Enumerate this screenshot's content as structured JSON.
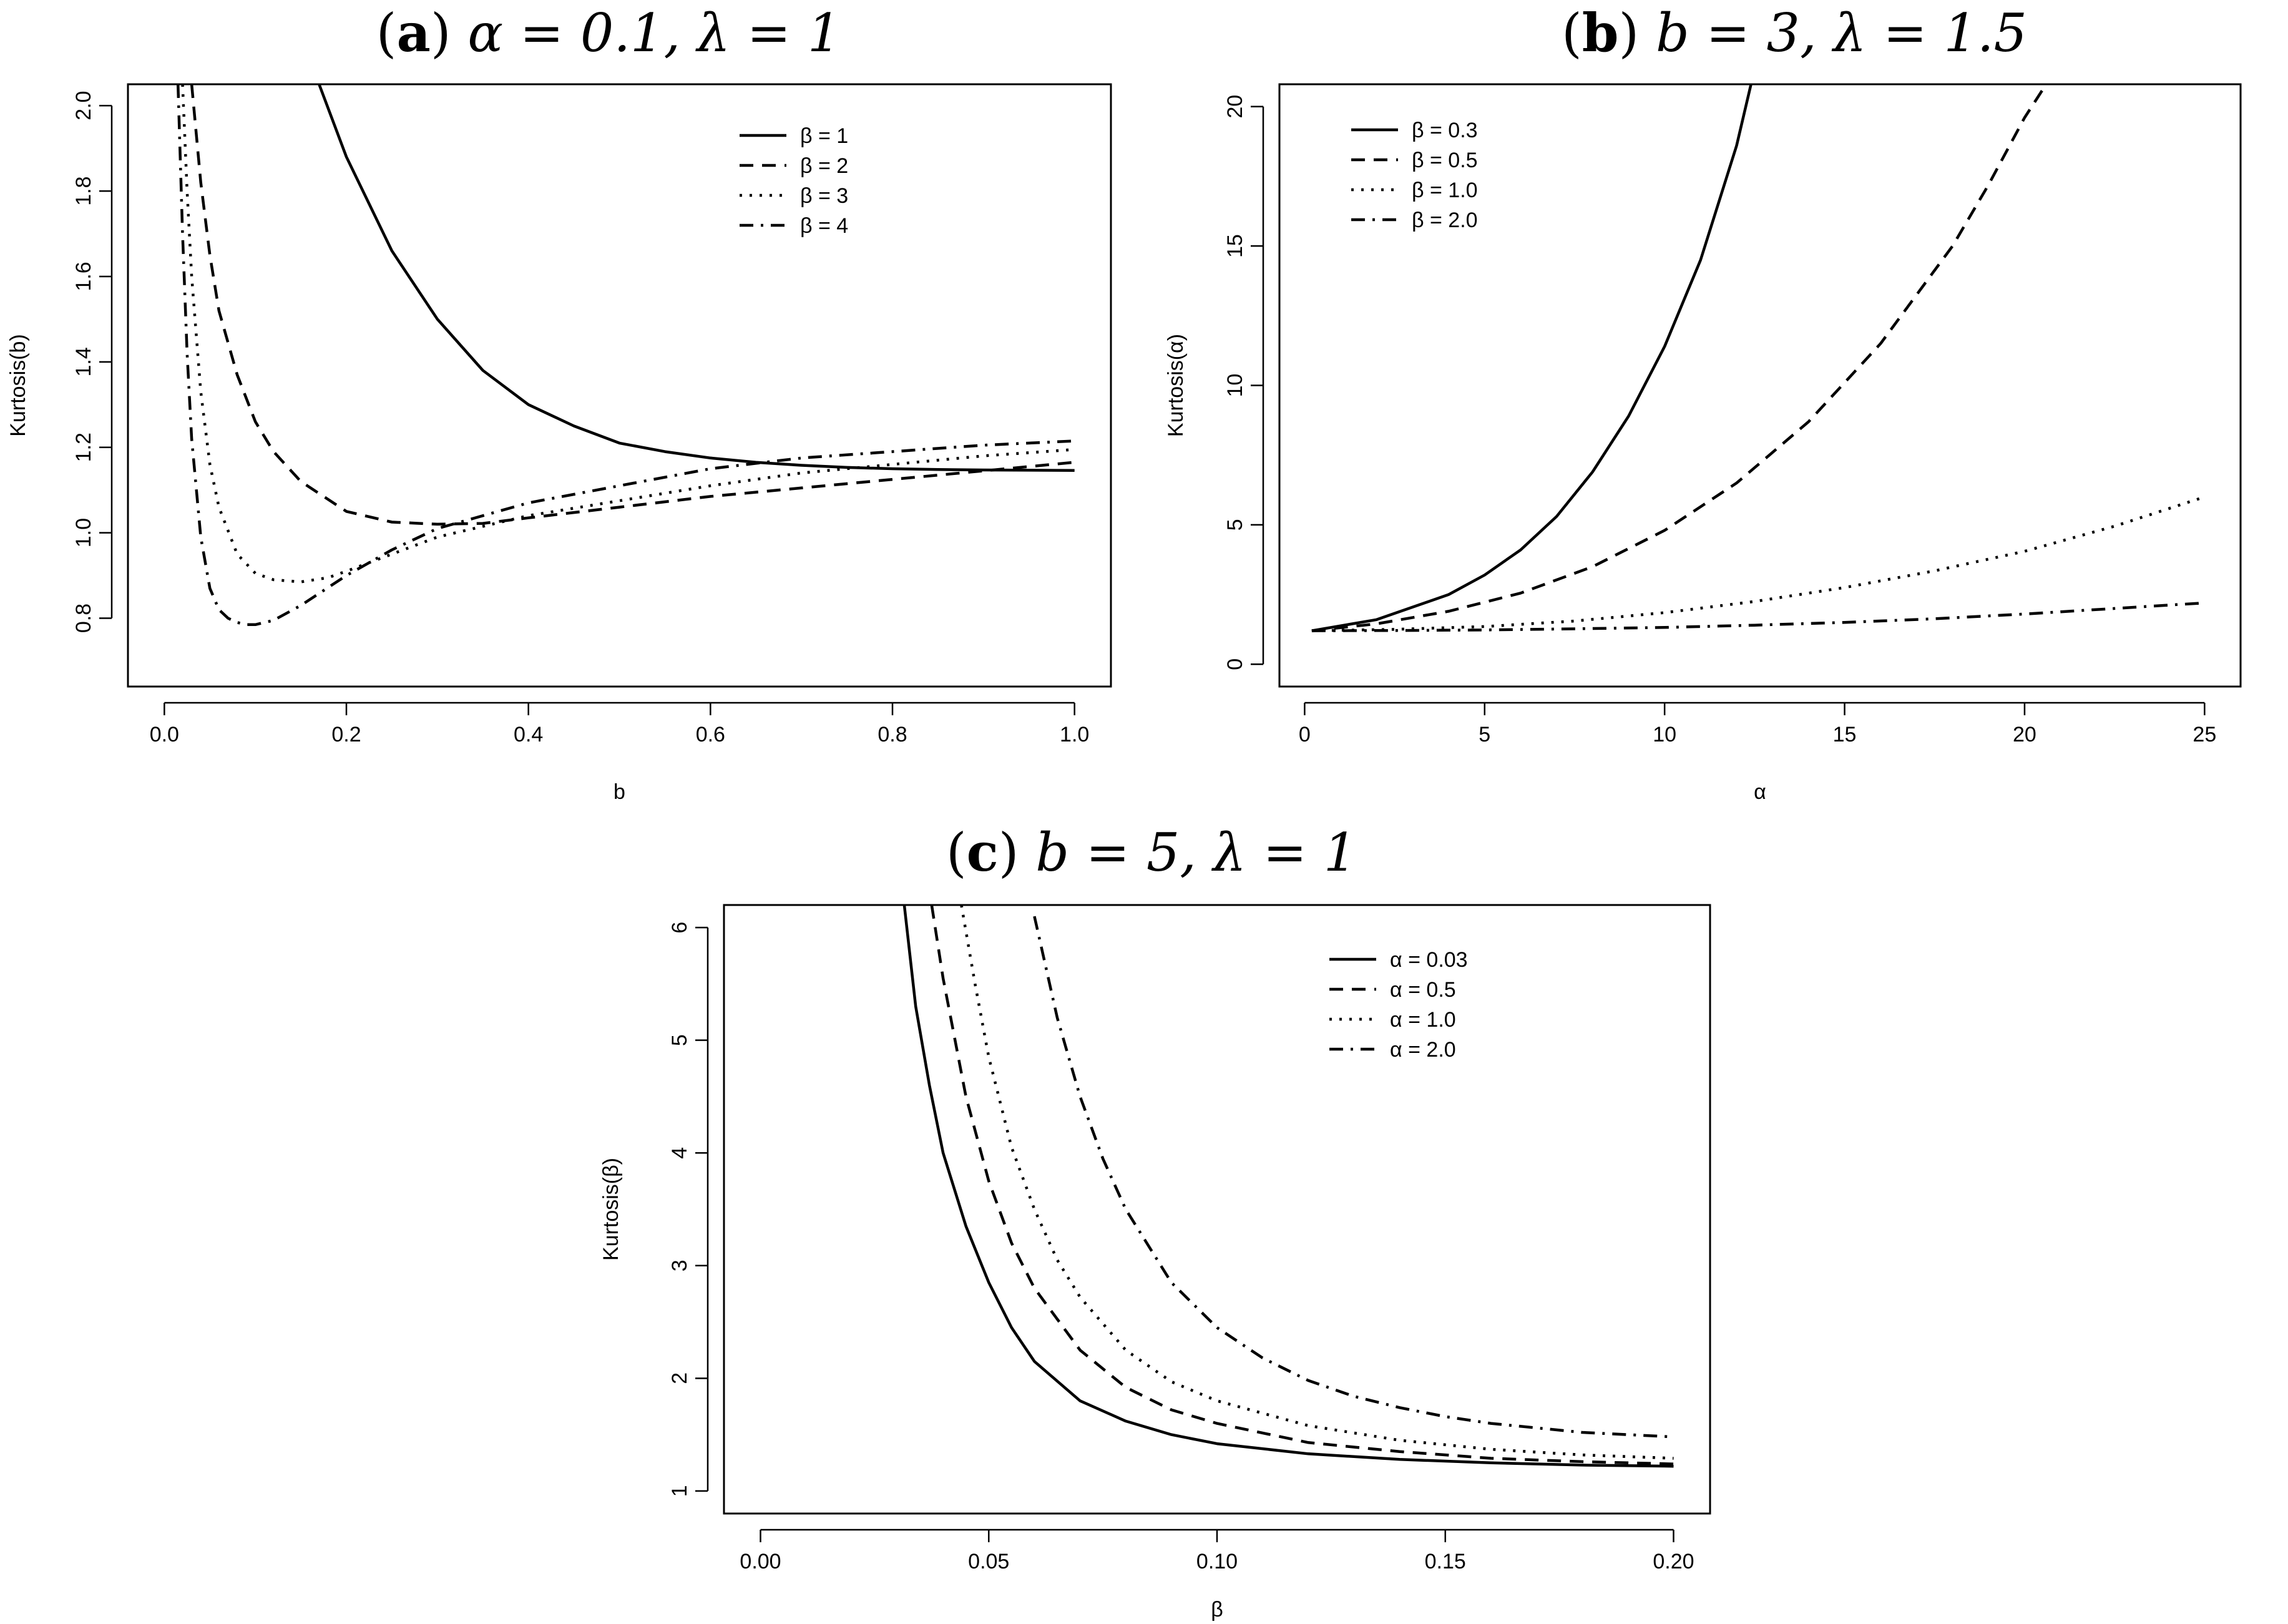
{
  "figure": {
    "line_color": "#000000",
    "background": "#ffffff"
  },
  "chart_data": [
    {
      "id": "a",
      "type": "line",
      "title_letter": "a",
      "title_math": "α = 0.1, λ = 1",
      "xlabel": "b",
      "ylabel": "Kurtosis(b)",
      "xlim": [
        -0.04,
        1.04
      ],
      "ylim": [
        0.64,
        2.05
      ],
      "xticks": [
        0.0,
        0.2,
        0.4,
        0.6,
        0.8,
        1.0
      ],
      "xtick_labels": [
        "0.0",
        "0.2",
        "0.4",
        "0.6",
        "0.8",
        "1.0"
      ],
      "yticks": [
        0.8,
        1.0,
        1.2,
        1.4,
        1.6,
        1.8,
        2.0
      ],
      "ytick_labels": [
        "0.8",
        "1.0",
        "1.2",
        "1.4",
        "1.6",
        "1.8",
        "2.0"
      ],
      "legend_position": "top-right",
      "series": [
        {
          "name": "β = 1",
          "dash": "solid",
          "x": [
            0.17,
            0.2,
            0.25,
            0.3,
            0.35,
            0.4,
            0.45,
            0.5,
            0.55,
            0.6,
            0.65,
            0.7,
            0.75,
            0.8,
            0.85,
            0.9,
            1.0
          ],
          "y": [
            2.05,
            1.88,
            1.66,
            1.5,
            1.38,
            1.3,
            1.25,
            1.21,
            1.19,
            1.175,
            1.165,
            1.158,
            1.153,
            1.15,
            1.148,
            1.147,
            1.146
          ]
        },
        {
          "name": "β = 2",
          "dash": "dashed",
          "x": [
            0.03,
            0.04,
            0.05,
            0.06,
            0.08,
            0.1,
            0.12,
            0.15,
            0.2,
            0.25,
            0.3,
            0.35,
            0.4,
            0.5,
            0.6,
            0.7,
            0.8,
            0.9,
            1.0
          ],
          "y": [
            2.05,
            1.82,
            1.65,
            1.52,
            1.37,
            1.26,
            1.19,
            1.12,
            1.05,
            1.025,
            1.02,
            1.022,
            1.035,
            1.06,
            1.085,
            1.105,
            1.125,
            1.145,
            1.165
          ]
        },
        {
          "name": "β = 3",
          "dash": "dotted",
          "x": [
            0.02,
            0.025,
            0.03,
            0.04,
            0.05,
            0.06,
            0.08,
            0.1,
            0.12,
            0.15,
            0.18,
            0.2,
            0.25,
            0.3,
            0.4,
            0.5,
            0.6,
            0.7,
            0.8,
            0.9,
            1.0
          ],
          "y": [
            2.05,
            1.8,
            1.6,
            1.33,
            1.16,
            1.06,
            0.95,
            0.905,
            0.89,
            0.885,
            0.895,
            0.91,
            0.95,
            0.99,
            1.04,
            1.075,
            1.11,
            1.14,
            1.16,
            1.18,
            1.195
          ]
        },
        {
          "name": "β = 4",
          "dash": "dashdot",
          "x": [
            0.015,
            0.02,
            0.025,
            0.03,
            0.04,
            0.05,
            0.06,
            0.07,
            0.08,
            0.09,
            0.1,
            0.12,
            0.15,
            0.2,
            0.25,
            0.3,
            0.4,
            0.5,
            0.6,
            0.7,
            0.8,
            0.9,
            1.0
          ],
          "y": [
            2.05,
            1.7,
            1.42,
            1.22,
            0.99,
            0.87,
            0.82,
            0.8,
            0.79,
            0.785,
            0.785,
            0.795,
            0.83,
            0.9,
            0.96,
            1.01,
            1.07,
            1.11,
            1.15,
            1.175,
            1.19,
            1.205,
            1.215
          ]
        }
      ],
      "legend": [
        "β = 1",
        "β = 2",
        "β = 3",
        "β = 4"
      ]
    },
    {
      "id": "b",
      "type": "line",
      "title_letter": "b",
      "title_math": "b = 3, λ = 1.5",
      "xlabel": "α",
      "ylabel": "Kurtosis(α)",
      "xlim": [
        -0.7,
        26.0
      ],
      "ylim": [
        -0.8,
        20.8
      ],
      "xticks": [
        0,
        5,
        10,
        15,
        20,
        25
      ],
      "xtick_labels": [
        "0",
        "5",
        "10",
        "15",
        "20",
        "25"
      ],
      "yticks": [
        0,
        5,
        10,
        15,
        20
      ],
      "ytick_labels": [
        "0",
        "5",
        "10",
        "15",
        "20"
      ],
      "legend_position": "top-left",
      "series": [
        {
          "name": "β = 0.3",
          "dash": "solid",
          "x": [
            0.2,
            2,
            4,
            5,
            6,
            7,
            8,
            9,
            10,
            11,
            12,
            12.4
          ],
          "y": [
            1.2,
            1.6,
            2.5,
            3.2,
            4.1,
            5.3,
            6.9,
            8.9,
            11.4,
            14.5,
            18.6,
            20.8
          ]
        },
        {
          "name": "β = 0.5",
          "dash": "dashed",
          "x": [
            0.2,
            2,
            4,
            6,
            8,
            10,
            12,
            14,
            16,
            18,
            19,
            20,
            20.6
          ],
          "y": [
            1.2,
            1.45,
            1.9,
            2.55,
            3.5,
            4.8,
            6.5,
            8.7,
            11.5,
            15.0,
            17.2,
            19.6,
            20.8
          ]
        },
        {
          "name": "β = 1.0",
          "dash": "dotted",
          "x": [
            0.2,
            2.5,
            5,
            7.5,
            10,
            12.5,
            15,
            17.5,
            20,
            22.5,
            25
          ],
          "y": [
            1.2,
            1.25,
            1.35,
            1.55,
            1.85,
            2.25,
            2.75,
            3.35,
            4.05,
            4.95,
            6.0
          ]
        },
        {
          "name": "β = 2.0",
          "dash": "dashdot",
          "x": [
            0.2,
            2.5,
            5,
            7.5,
            10,
            12.5,
            15,
            17.5,
            20,
            22.5,
            25
          ],
          "y": [
            1.2,
            1.21,
            1.23,
            1.27,
            1.32,
            1.4,
            1.5,
            1.63,
            1.8,
            2.0,
            2.2
          ]
        }
      ],
      "legend": [
        "β = 0.3",
        "β = 0.5",
        "β = 1.0",
        "β = 2.0"
      ]
    },
    {
      "id": "c",
      "type": "line",
      "title_letter": "c",
      "title_math": "b = 5, λ = 1",
      "xlabel": "β",
      "ylabel": "Kurtosis(β)",
      "xlim": [
        -0.008,
        0.208
      ],
      "ylim": [
        0.8,
        6.2
      ],
      "xticks": [
        0.0,
        0.05,
        0.1,
        0.15,
        0.2
      ],
      "xtick_labels": [
        "0.00",
        "0.05",
        "0.10",
        "0.15",
        "0.20"
      ],
      "yticks": [
        1,
        2,
        3,
        4,
        5,
        6
      ],
      "ytick_labels": [
        "1",
        "2",
        "3",
        "4",
        "5",
        "6"
      ],
      "legend_position": "top-right",
      "series": [
        {
          "name": "α = 0.03",
          "dash": "solid",
          "x": [
            0.0315,
            0.034,
            0.037,
            0.04,
            0.045,
            0.05,
            0.055,
            0.06,
            0.07,
            0.08,
            0.09,
            0.1,
            0.12,
            0.14,
            0.16,
            0.18,
            0.2
          ],
          "y": [
            6.2,
            5.3,
            4.6,
            4.0,
            3.35,
            2.85,
            2.45,
            2.15,
            1.8,
            1.62,
            1.5,
            1.42,
            1.33,
            1.28,
            1.25,
            1.23,
            1.22
          ]
        },
        {
          "name": "α = 0.5",
          "dash": "dashed",
          "x": [
            0.0375,
            0.04,
            0.045,
            0.05,
            0.055,
            0.06,
            0.07,
            0.08,
            0.09,
            0.1,
            0.12,
            0.14,
            0.16,
            0.18,
            0.2
          ],
          "y": [
            6.2,
            5.55,
            4.5,
            3.75,
            3.2,
            2.8,
            2.25,
            1.92,
            1.72,
            1.6,
            1.43,
            1.35,
            1.29,
            1.26,
            1.24
          ]
        },
        {
          "name": "α = 1.0",
          "dash": "dotted",
          "x": [
            0.044,
            0.047,
            0.05,
            0.055,
            0.06,
            0.065,
            0.07,
            0.08,
            0.09,
            0.1,
            0.12,
            0.14,
            0.16,
            0.18,
            0.2
          ],
          "y": [
            6.2,
            5.5,
            4.85,
            4.05,
            3.5,
            3.05,
            2.72,
            2.25,
            1.97,
            1.8,
            1.58,
            1.45,
            1.37,
            1.32,
            1.29
          ]
        },
        {
          "name": "α = 2.0",
          "dash": "dashdot",
          "x": [
            0.06,
            0.065,
            0.07,
            0.075,
            0.08,
            0.09,
            0.1,
            0.11,
            0.12,
            0.13,
            0.14,
            0.15,
            0.16,
            0.17,
            0.18,
            0.19,
            0.2
          ],
          "y": [
            6.1,
            5.2,
            4.5,
            3.95,
            3.5,
            2.85,
            2.45,
            2.18,
            1.98,
            1.84,
            1.74,
            1.66,
            1.6,
            1.56,
            1.52,
            1.5,
            1.48
          ]
        }
      ],
      "legend": [
        "α = 0.03",
        "α = 0.5",
        "α = 1.0",
        "α = 2.0"
      ]
    }
  ]
}
